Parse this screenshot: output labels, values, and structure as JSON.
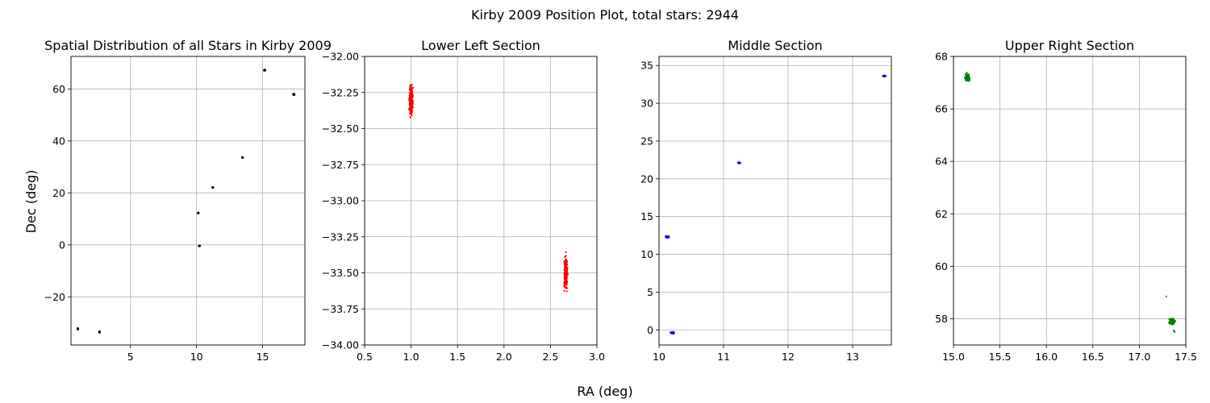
{
  "figure": {
    "suptitle": "Kirby 2009 Position Plot, total stars: 2944",
    "xlabel": "RA (deg)",
    "ylabel": "Dec (deg)"
  },
  "chart_data": [
    {
      "type": "scatter",
      "title": "Spatial Distribution of all Stars in Kirby 2009",
      "xlim": [
        0.5,
        18.2
      ],
      "ylim": [
        -38.5,
        72.5
      ],
      "xticks": [
        5,
        10,
        15
      ],
      "xtick_labels": [
        "5",
        "10",
        "15"
      ],
      "yticks": [
        -20,
        0,
        20,
        40,
        60
      ],
      "ytick_labels": [
        "−20",
        "0",
        "20",
        "40",
        "60"
      ],
      "grid": true,
      "color": "#000000",
      "clusters": [
        {
          "x": 1.02,
          "y": -32.3,
          "sx": 0.02,
          "sy": 0.15,
          "n": 60
        },
        {
          "x": 2.66,
          "y": -33.5,
          "sx": 0.02,
          "sy": 0.15,
          "n": 60
        },
        {
          "x": 10.13,
          "y": 12.3,
          "sx": 0.03,
          "sy": 0.1,
          "n": 30
        },
        {
          "x": 10.22,
          "y": -0.4,
          "sx": 0.03,
          "sy": 0.1,
          "n": 30
        },
        {
          "x": 11.23,
          "y": 22.1,
          "sx": 0.03,
          "sy": 0.1,
          "n": 20
        },
        {
          "x": 13.48,
          "y": 33.6,
          "sx": 0.03,
          "sy": 0.1,
          "n": 20
        },
        {
          "x": 15.15,
          "y": 67.2,
          "sx": 0.04,
          "sy": 0.15,
          "n": 40
        },
        {
          "x": 17.35,
          "y": 57.9,
          "sx": 0.04,
          "sy": 0.15,
          "n": 40
        }
      ]
    },
    {
      "type": "scatter",
      "title": "Lower Left Section",
      "xlim": [
        0.5,
        3.0
      ],
      "ylim": [
        -34.0,
        -32.0
      ],
      "xticks": [
        0.5,
        1.0,
        1.5,
        2.0,
        2.5,
        3.0
      ],
      "xtick_labels": [
        "0.5",
        "1.0",
        "1.5",
        "2.0",
        "2.5",
        "3.0"
      ],
      "yticks": [
        -34.0,
        -33.75,
        -33.5,
        -33.25,
        -33.0,
        -32.75,
        -32.5,
        -32.25,
        -32.0
      ],
      "ytick_labels": [
        "−34.00",
        "−33.75",
        "−33.50",
        "−33.25",
        "−33.00",
        "−32.75",
        "−32.50",
        "−32.25",
        "−32.00"
      ],
      "grid": true,
      "color": "#ff0000",
      "clusters": [
        {
          "x": 1.0,
          "y": -32.3,
          "sx": 0.012,
          "sy": 0.075,
          "n": 260
        },
        {
          "x": 2.665,
          "y": -33.5,
          "sx": 0.012,
          "sy": 0.07,
          "n": 260
        }
      ]
    },
    {
      "type": "scatter",
      "title": "Middle Section",
      "xlim": [
        10.0,
        13.6
      ],
      "ylim": [
        -2.0,
        36.2
      ],
      "xticks": [
        10,
        11,
        12,
        13
      ],
      "xtick_labels": [
        "10",
        "11",
        "12",
        "13"
      ],
      "yticks": [
        0,
        5,
        10,
        15,
        20,
        25,
        30,
        35
      ],
      "ytick_labels": [
        "0",
        "5",
        "10",
        "15",
        "20",
        "25",
        "30",
        "35"
      ],
      "grid": true,
      "color": "#0000ff",
      "clusters": [
        {
          "x": 10.13,
          "y": 12.3,
          "sx": 0.018,
          "sy": 0.07,
          "n": 60
        },
        {
          "x": 10.21,
          "y": -0.4,
          "sx": 0.018,
          "sy": 0.07,
          "n": 60
        },
        {
          "x": 11.24,
          "y": 22.1,
          "sx": 0.012,
          "sy": 0.05,
          "n": 30
        },
        {
          "x": 13.49,
          "y": 33.6,
          "sx": 0.012,
          "sy": 0.05,
          "n": 30
        }
      ]
    },
    {
      "type": "scatter",
      "title": "Upper Right Section",
      "xlim": [
        15.0,
        17.5
      ],
      "ylim": [
        57.0,
        68.0
      ],
      "xticks": [
        15.0,
        15.5,
        16.0,
        16.5,
        17.0,
        17.5
      ],
      "xtick_labels": [
        "15.0",
        "15.5",
        "16.0",
        "16.5",
        "17.0",
        "17.5"
      ],
      "yticks": [
        58,
        60,
        62,
        64,
        66,
        68
      ],
      "ytick_labels": [
        "58",
        "60",
        "62",
        "64",
        "66",
        "68"
      ],
      "grid": true,
      "color": "#008000",
      "clusters": [
        {
          "x": 15.15,
          "y": 67.2,
          "sx": 0.015,
          "sy": 0.09,
          "n": 160
        },
        {
          "x": 17.35,
          "y": 57.9,
          "sx": 0.02,
          "sy": 0.07,
          "n": 160
        }
      ],
      "outliers": [
        {
          "x": 17.29,
          "y": 58.85
        },
        {
          "x": 17.37,
          "y": 57.55
        },
        {
          "x": 17.38,
          "y": 57.5
        }
      ]
    }
  ]
}
